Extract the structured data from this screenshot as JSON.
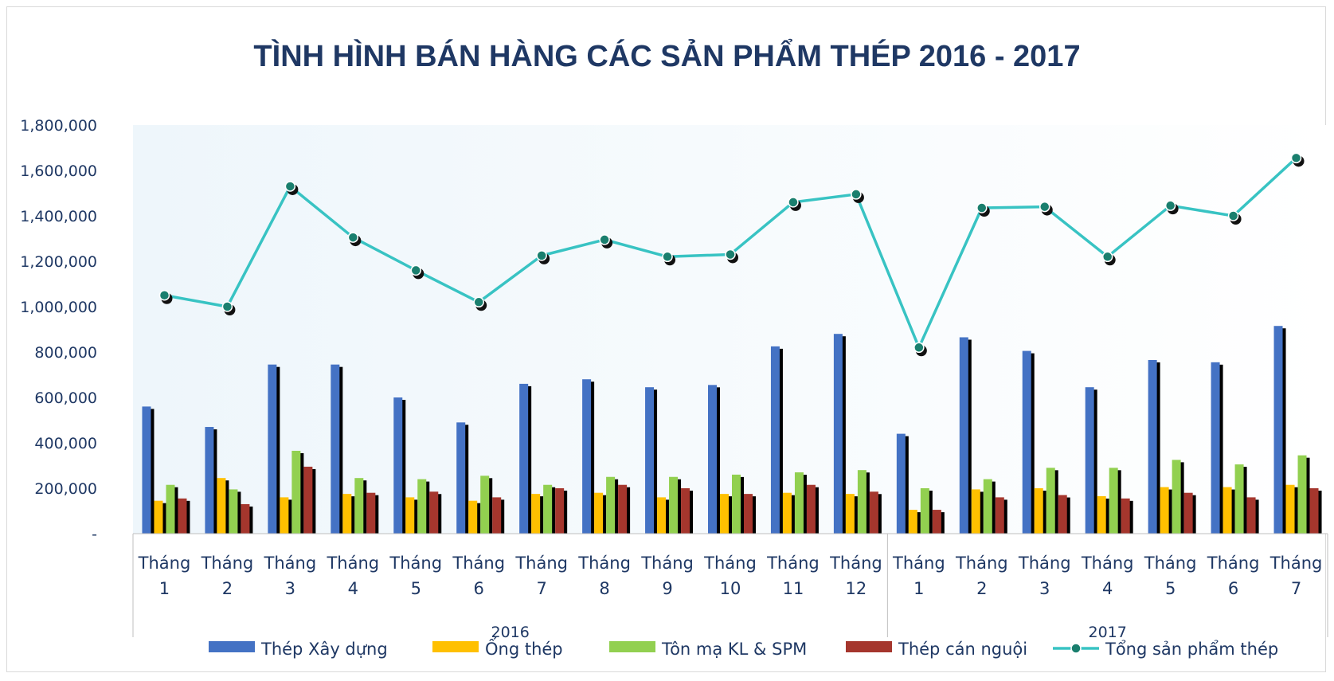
{
  "chart_data": {
    "type": "bar",
    "title": "TÌNH HÌNH BÁN HÀNG CÁC SẢN PHẨM THÉP 2016 - 2017",
    "ylim": [
      0,
      1800000
    ],
    "y_ticks": [
      "-",
      "200,000",
      "400,000",
      "600,000",
      "800,000",
      "1,000,000",
      "1,200,000",
      "1,400,000",
      "1,600,000",
      "1,800,000"
    ],
    "grid": false,
    "legend_position": "bottom",
    "groups": [
      {
        "label": "2016",
        "categories": [
          [
            "Tháng",
            "1"
          ],
          [
            "Tháng",
            "2"
          ],
          [
            "Tháng",
            "3"
          ],
          [
            "Tháng",
            "4"
          ],
          [
            "Tháng",
            "5"
          ],
          [
            "Tháng",
            "6"
          ],
          [
            "Tháng",
            "7"
          ],
          [
            "Tháng",
            "8"
          ],
          [
            "Tháng",
            "9"
          ],
          [
            "Tháng",
            "10"
          ],
          [
            "Tháng",
            "11"
          ],
          [
            "Tháng",
            "12"
          ]
        ]
      },
      {
        "label": "2017",
        "categories": [
          [
            "Tháng",
            "1"
          ],
          [
            "Tháng",
            "2"
          ],
          [
            "Tháng",
            "3"
          ],
          [
            "Tháng",
            "4"
          ],
          [
            "Tháng",
            "5"
          ],
          [
            "Tháng",
            "6"
          ],
          [
            "Tháng",
            "7"
          ]
        ]
      }
    ],
    "series": [
      {
        "name": "Thép Xây dựng",
        "type": "bar",
        "color": "#4472c4",
        "values": [
          560000,
          470000,
          745000,
          745000,
          600000,
          490000,
          660000,
          680000,
          645000,
          655000,
          825000,
          880000,
          440000,
          865000,
          805000,
          645000,
          765000,
          755000,
          915000
        ]
      },
      {
        "name": "Ống thép",
        "type": "bar",
        "color": "#ffc000",
        "values": [
          145000,
          245000,
          160000,
          175000,
          160000,
          145000,
          175000,
          180000,
          160000,
          175000,
          180000,
          175000,
          105000,
          195000,
          200000,
          165000,
          205000,
          205000,
          215000
        ]
      },
      {
        "name": "Tôn mạ KL & SPM",
        "type": "bar",
        "color": "#92d050",
        "values": [
          215000,
          195000,
          365000,
          245000,
          240000,
          255000,
          215000,
          250000,
          250000,
          260000,
          270000,
          280000,
          200000,
          240000,
          290000,
          290000,
          325000,
          305000,
          345000
        ]
      },
      {
        "name": "Thép cán nguội",
        "type": "bar",
        "color": "#a5362d",
        "values": [
          155000,
          130000,
          295000,
          180000,
          185000,
          160000,
          200000,
          215000,
          200000,
          175000,
          215000,
          185000,
          105000,
          160000,
          170000,
          155000,
          180000,
          160000,
          200000
        ]
      },
      {
        "name": "Tổng sản phẩm thép",
        "type": "line",
        "color": "#38c3c3",
        "values": [
          1050000,
          1000000,
          1530000,
          1305000,
          1160000,
          1020000,
          1225000,
          1295000,
          1220000,
          1230000,
          1460000,
          1495000,
          820000,
          1435000,
          1440000,
          1220000,
          1445000,
          1400000,
          1655000
        ]
      }
    ]
  }
}
